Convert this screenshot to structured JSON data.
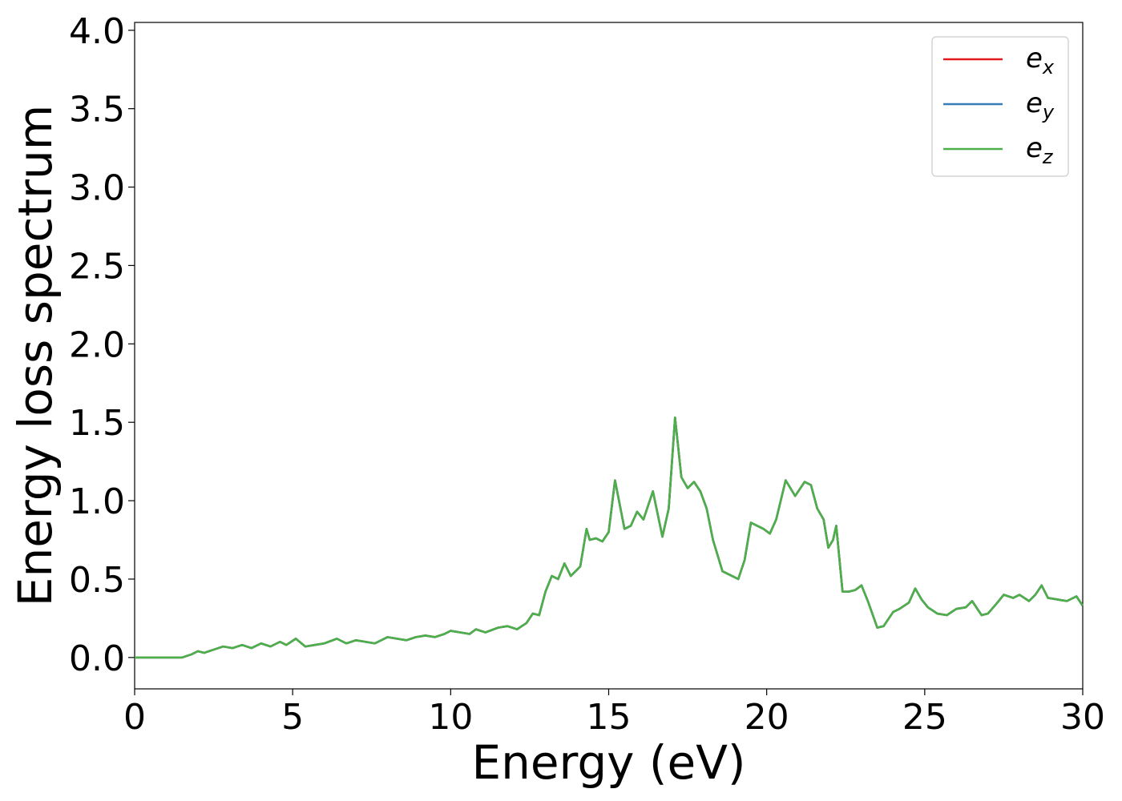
{
  "chart_data": {
    "type": "line",
    "title": "",
    "xlabel": "Energy (eV)",
    "ylabel": "Energy loss spectrum",
    "xlim": [
      0,
      30
    ],
    "ylim": [
      -0.2,
      4.05
    ],
    "xticks": [
      0,
      5,
      10,
      15,
      20,
      25,
      30
    ],
    "xtick_labels": [
      "0",
      "5",
      "10",
      "15",
      "20",
      "25",
      "30"
    ],
    "yticks": [
      0.0,
      0.5,
      1.0,
      1.5,
      2.0,
      2.5,
      3.0,
      3.5,
      4.0
    ],
    "ytick_labels": [
      "0.0",
      "0.5",
      "1.0",
      "1.5",
      "2.0",
      "2.5",
      "3.0",
      "3.5",
      "4.0"
    ],
    "grid": false,
    "legend_position": "top-right",
    "series": [
      {
        "name": "e_x",
        "legend_base": "e",
        "legend_sub": "x",
        "color": "#e41a1c",
        "x": [
          0,
          1.5,
          1.8,
          2.0,
          2.2,
          2.5,
          2.8,
          3.1,
          3.4,
          3.7,
          4.0,
          4.3,
          4.6,
          4.8,
          5.1,
          5.4,
          5.7,
          6.0,
          6.4,
          6.7,
          7.0,
          7.3,
          7.6,
          8.0,
          8.3,
          8.6,
          8.9,
          9.2,
          9.5,
          9.8,
          10.0,
          10.3,
          10.6,
          10.8,
          11.1,
          11.5,
          11.8,
          12.1,
          12.4,
          12.6,
          12.8,
          13.0,
          13.2,
          13.4,
          13.6,
          13.8,
          14.1,
          14.3,
          14.4,
          14.6,
          14.8,
          15.0,
          15.2,
          15.5,
          15.7,
          15.9,
          16.1,
          16.4,
          16.7,
          16.9,
          17.1,
          17.3,
          17.5,
          17.7,
          17.9,
          18.1,
          18.3,
          18.6,
          18.8,
          19.1,
          19.3,
          19.5,
          19.7,
          19.9,
          20.1,
          20.3,
          20.6,
          20.9,
          21.2,
          21.4,
          21.6,
          21.8,
          21.95,
          22.1,
          22.2,
          22.4,
          22.6,
          22.8,
          23.0,
          23.2,
          23.5,
          23.7,
          24.0,
          24.2,
          24.5,
          24.7,
          24.9,
          25.1,
          25.4,
          25.7,
          26.0,
          26.3,
          26.5,
          26.8,
          27.0,
          27.3,
          27.5,
          27.8,
          28.0,
          28.3,
          28.5,
          28.7,
          28.9,
          29.2,
          29.5,
          29.8,
          30.0
        ],
        "y": [
          0.0,
          0.0,
          0.02,
          0.04,
          0.03,
          0.05,
          0.07,
          0.06,
          0.08,
          0.06,
          0.09,
          0.07,
          0.1,
          0.08,
          0.12,
          0.07,
          0.08,
          0.09,
          0.12,
          0.09,
          0.11,
          0.1,
          0.09,
          0.13,
          0.12,
          0.11,
          0.13,
          0.14,
          0.13,
          0.15,
          0.17,
          0.16,
          0.15,
          0.18,
          0.16,
          0.19,
          0.2,
          0.18,
          0.22,
          0.28,
          0.27,
          0.42,
          0.52,
          0.5,
          0.6,
          0.52,
          0.58,
          0.82,
          0.75,
          0.76,
          0.74,
          0.8,
          1.13,
          0.82,
          0.84,
          0.93,
          0.88,
          1.06,
          0.77,
          0.95,
          1.53,
          1.15,
          1.08,
          1.12,
          1.06,
          0.95,
          0.75,
          0.55,
          0.53,
          0.5,
          0.62,
          0.86,
          0.84,
          0.82,
          0.79,
          0.88,
          1.13,
          1.03,
          1.12,
          1.1,
          0.95,
          0.88,
          0.7,
          0.75,
          0.84,
          0.42,
          0.42,
          0.43,
          0.46,
          0.36,
          0.19,
          0.2,
          0.29,
          0.31,
          0.35,
          0.44,
          0.37,
          0.32,
          0.28,
          0.27,
          0.31,
          0.32,
          0.36,
          0.27,
          0.28,
          0.35,
          0.4,
          0.38,
          0.4,
          0.36,
          0.4,
          0.46,
          0.38,
          0.37,
          0.36,
          0.39,
          0.33
        ]
      },
      {
        "name": "e_y",
        "legend_base": "e",
        "legend_sub": "y",
        "color": "#377eb8",
        "x": [
          0,
          1.5,
          1.8,
          2.0,
          2.2,
          2.5,
          2.8,
          3.1,
          3.4,
          3.7,
          4.0,
          4.3,
          4.6,
          4.8,
          5.1,
          5.4,
          5.7,
          6.0,
          6.4,
          6.7,
          7.0,
          7.3,
          7.6,
          8.0,
          8.3,
          8.6,
          8.9,
          9.2,
          9.5,
          9.8,
          10.0,
          10.3,
          10.6,
          10.8,
          11.1,
          11.5,
          11.8,
          12.1,
          12.4,
          12.6,
          12.8,
          13.0,
          13.2,
          13.4,
          13.6,
          13.8,
          14.1,
          14.3,
          14.4,
          14.6,
          14.8,
          15.0,
          15.2,
          15.5,
          15.7,
          15.9,
          16.1,
          16.4,
          16.7,
          16.9,
          17.1,
          17.3,
          17.5,
          17.7,
          17.9,
          18.1,
          18.3,
          18.6,
          18.8,
          19.1,
          19.3,
          19.5,
          19.7,
          19.9,
          20.1,
          20.3,
          20.6,
          20.9,
          21.2,
          21.4,
          21.6,
          21.8,
          21.95,
          22.1,
          22.2,
          22.4,
          22.6,
          22.8,
          23.0,
          23.2,
          23.5,
          23.7,
          24.0,
          24.2,
          24.5,
          24.7,
          24.9,
          25.1,
          25.4,
          25.7,
          26.0,
          26.3,
          26.5,
          26.8,
          27.0,
          27.3,
          27.5,
          27.8,
          28.0,
          28.3,
          28.5,
          28.7,
          28.9,
          29.2,
          29.5,
          29.8,
          30.0
        ],
        "y": [
          0.0,
          0.0,
          0.02,
          0.04,
          0.03,
          0.05,
          0.07,
          0.06,
          0.08,
          0.06,
          0.09,
          0.07,
          0.1,
          0.08,
          0.12,
          0.07,
          0.08,
          0.09,
          0.12,
          0.09,
          0.11,
          0.1,
          0.09,
          0.13,
          0.12,
          0.11,
          0.13,
          0.14,
          0.13,
          0.15,
          0.17,
          0.16,
          0.15,
          0.18,
          0.16,
          0.19,
          0.2,
          0.18,
          0.22,
          0.28,
          0.27,
          0.42,
          0.52,
          0.5,
          0.6,
          0.52,
          0.58,
          0.82,
          0.75,
          0.76,
          0.74,
          0.8,
          1.13,
          0.82,
          0.84,
          0.93,
          0.88,
          1.06,
          0.77,
          0.95,
          1.53,
          1.15,
          1.08,
          1.12,
          1.06,
          0.95,
          0.75,
          0.55,
          0.53,
          0.5,
          0.62,
          0.86,
          0.84,
          0.82,
          0.79,
          0.88,
          1.13,
          1.03,
          1.12,
          1.1,
          0.95,
          0.88,
          0.7,
          0.75,
          0.84,
          0.42,
          0.42,
          0.43,
          0.46,
          0.36,
          0.19,
          0.2,
          0.29,
          0.31,
          0.35,
          0.44,
          0.37,
          0.32,
          0.28,
          0.27,
          0.31,
          0.32,
          0.36,
          0.27,
          0.28,
          0.35,
          0.4,
          0.38,
          0.4,
          0.36,
          0.4,
          0.46,
          0.38,
          0.37,
          0.36,
          0.39,
          0.33
        ]
      },
      {
        "name": "e_z",
        "legend_base": "e",
        "legend_sub": "z",
        "color": "#4daf4a",
        "x": [
          0,
          1.5,
          1.8,
          2.0,
          2.2,
          2.5,
          2.8,
          3.1,
          3.4,
          3.7,
          4.0,
          4.3,
          4.6,
          4.8,
          5.1,
          5.4,
          5.7,
          6.0,
          6.4,
          6.7,
          7.0,
          7.3,
          7.6,
          8.0,
          8.3,
          8.6,
          8.9,
          9.2,
          9.5,
          9.8,
          10.0,
          10.3,
          10.6,
          10.8,
          11.1,
          11.5,
          11.8,
          12.1,
          12.4,
          12.6,
          12.8,
          13.0,
          13.2,
          13.4,
          13.6,
          13.8,
          14.1,
          14.3,
          14.4,
          14.6,
          14.8,
          15.0,
          15.2,
          15.5,
          15.7,
          15.9,
          16.1,
          16.4,
          16.7,
          16.9,
          17.1,
          17.3,
          17.5,
          17.7,
          17.9,
          18.1,
          18.3,
          18.6,
          18.8,
          19.1,
          19.3,
          19.5,
          19.7,
          19.9,
          20.1,
          20.3,
          20.6,
          20.9,
          21.2,
          21.4,
          21.6,
          21.8,
          21.95,
          22.1,
          22.2,
          22.4,
          22.6,
          22.8,
          23.0,
          23.2,
          23.5,
          23.7,
          24.0,
          24.2,
          24.5,
          24.7,
          24.9,
          25.1,
          25.4,
          25.7,
          26.0,
          26.3,
          26.5,
          26.8,
          27.0,
          27.3,
          27.5,
          27.8,
          28.0,
          28.3,
          28.5,
          28.7,
          28.9,
          29.2,
          29.5,
          29.8,
          30.0
        ],
        "y": [
          0.0,
          0.0,
          0.02,
          0.04,
          0.03,
          0.05,
          0.07,
          0.06,
          0.08,
          0.06,
          0.09,
          0.07,
          0.1,
          0.08,
          0.12,
          0.07,
          0.08,
          0.09,
          0.12,
          0.09,
          0.11,
          0.1,
          0.09,
          0.13,
          0.12,
          0.11,
          0.13,
          0.14,
          0.13,
          0.15,
          0.17,
          0.16,
          0.15,
          0.18,
          0.16,
          0.19,
          0.2,
          0.18,
          0.22,
          0.28,
          0.27,
          0.42,
          0.52,
          0.5,
          0.6,
          0.52,
          0.58,
          0.82,
          0.75,
          0.76,
          0.74,
          0.8,
          1.13,
          0.82,
          0.84,
          0.93,
          0.88,
          1.06,
          0.77,
          0.95,
          1.53,
          1.15,
          1.08,
          1.12,
          1.06,
          0.95,
          0.75,
          0.55,
          0.53,
          0.5,
          0.62,
          0.86,
          0.84,
          0.82,
          0.79,
          0.88,
          1.13,
          1.03,
          1.12,
          1.1,
          0.95,
          0.88,
          0.7,
          0.75,
          0.84,
          0.42,
          0.42,
          0.43,
          0.46,
          0.36,
          0.19,
          0.2,
          0.29,
          0.31,
          0.35,
          0.44,
          0.37,
          0.32,
          0.28,
          0.27,
          0.31,
          0.32,
          0.36,
          0.27,
          0.28,
          0.35,
          0.4,
          0.38,
          0.4,
          0.36,
          0.4,
          0.46,
          0.38,
          0.37,
          0.36,
          0.39,
          0.33
        ]
      }
    ]
  }
}
